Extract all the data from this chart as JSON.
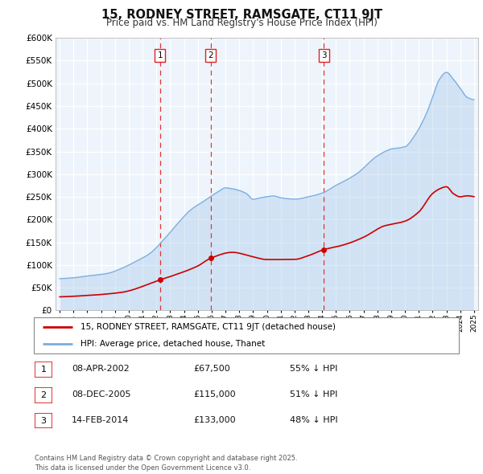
{
  "title": "15, RODNEY STREET, RAMSGATE, CT11 9JT",
  "subtitle": "Price paid vs. HM Land Registry's House Price Index (HPI)",
  "background_color": "#ffffff",
  "grid_color": "#c8d8e8",
  "hpi_color": "#7aade0",
  "hpi_fill_color": "#daeaf7",
  "price_color": "#cc0000",
  "vline_color": "#dd2222",
  "ylim": [
    0,
    600000
  ],
  "yticks": [
    0,
    50000,
    100000,
    150000,
    200000,
    250000,
    300000,
    350000,
    400000,
    450000,
    500000,
    550000,
    600000
  ],
  "x_start_year": 1995,
  "x_end_year": 2025,
  "transactions": [
    {
      "date": 2002.27,
      "price": 67500,
      "label": "1"
    },
    {
      "date": 2005.93,
      "price": 115000,
      "label": "2"
    },
    {
      "date": 2014.12,
      "price": 133000,
      "label": "3"
    }
  ],
  "table_entries": [
    {
      "num": "1",
      "date": "08-APR-2002",
      "price": "£67,500",
      "note": "55% ↓ HPI"
    },
    {
      "num": "2",
      "date": "08-DEC-2005",
      "price": "£115,000",
      "note": "51% ↓ HPI"
    },
    {
      "num": "3",
      "date": "14-FEB-2014",
      "price": "£133,000",
      "note": "48% ↓ HPI"
    }
  ],
  "legend_line1": "15, RODNEY STREET, RAMSGATE, CT11 9JT (detached house)",
  "legend_line2": "HPI: Average price, detached house, Thanet",
  "footnote": "Contains HM Land Registry data © Crown copyright and database right 2025.\nThis data is licensed under the Open Government Licence v3.0."
}
